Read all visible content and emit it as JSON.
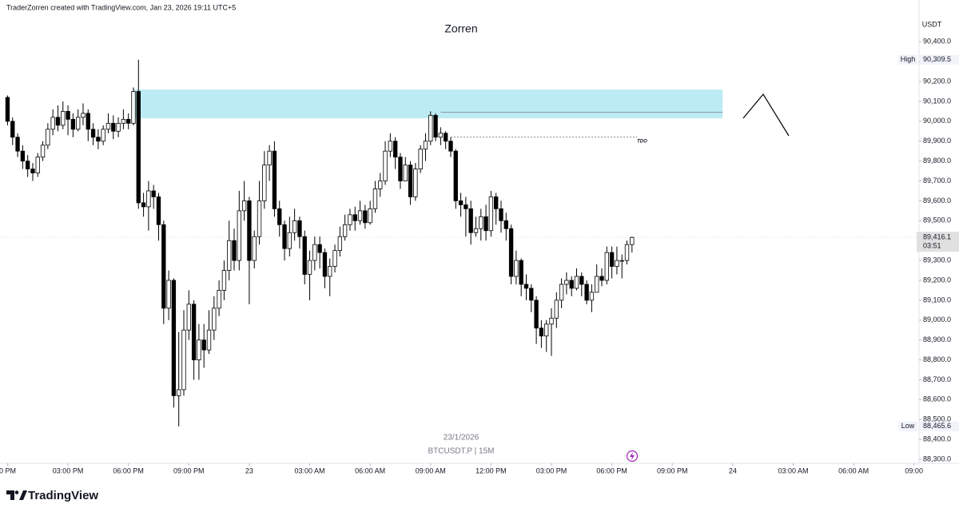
{
  "header": "TraderZorren created with TradingView.com, Jan 23, 2026 19:11 UTC+5",
  "brand": "TradingView",
  "chart_data": {
    "type": "candlestick",
    "title": "Zorren",
    "symbol": "BTCUSDT.P | 15M",
    "date_label": "23/1/2026",
    "y_axis_label": "USDT",
    "up_color": "#ffffff",
    "down_color": "#000000",
    "grid": false,
    "open": [
      90120,
      90000,
      89920,
      89850,
      89800,
      89760,
      89740,
      89820,
      89880,
      89960,
      90020,
      89980,
      90050,
      90010,
      89960,
      90020,
      90040,
      89960,
      89920,
      89900,
      89960,
      89990,
      89950,
      89990,
      90010,
      89990,
      90150,
      89590,
      89570,
      89650,
      89620,
      89480,
      89060,
      89200,
      88620,
      88650,
      88950,
      89080,
      88800,
      88900,
      88850,
      88950,
      89060,
      89150,
      89250,
      89400,
      89300,
      89550,
      89600,
      89300,
      89420,
      89600,
      89780,
      89850,
      89560,
      89480,
      89360,
      89440,
      89500,
      89420,
      89230,
      89300,
      89380,
      89340,
      89220,
      89270,
      89350,
      89420,
      89480,
      89530,
      89500,
      89550,
      89490,
      89560,
      89660,
      89700,
      89850,
      89900,
      89820,
      89700,
      89780,
      89620,
      89760,
      89860,
      89900,
      90030,
      89920,
      89940,
      89900,
      89850,
      89600,
      89580,
      89560,
      89440,
      89460,
      89520,
      89450,
      89620,
      89560,
      89500,
      89460,
      89220,
      89300,
      89180,
      89160,
      89100,
      88960,
      88920,
      88980,
      89010,
      89100,
      89180,
      89200,
      89160,
      89220,
      89180,
      89100,
      89140,
      89220,
      89200,
      89340,
      89270,
      89300,
      89300,
      89380
    ],
    "high": [
      90130,
      90020,
      89940,
      89880,
      89830,
      89790,
      89840,
      89900,
      89990,
      90060,
      90080,
      90100,
      90080,
      90040,
      90060,
      90090,
      90060,
      89990,
      89960,
      89980,
      90040,
      90030,
      90020,
      90060,
      90040,
      90170,
      90309.5,
      89640,
      89700,
      89680,
      89640,
      89500,
      89250,
      89210,
      88940,
      89050,
      89150,
      89100,
      88980,
      88980,
      89050,
      89120,
      89200,
      89300,
      89500,
      89460,
      89650,
      89700,
      89620,
      89450,
      89700,
      89850,
      89880,
      89900,
      89600,
      89500,
      89520,
      89560,
      89520,
      89450,
      89350,
      89420,
      89420,
      89360,
      89310,
      89380,
      89470,
      89530,
      89560,
      89570,
      89600,
      89580,
      89600,
      89700,
      89740,
      89900,
      89940,
      89920,
      89840,
      89820,
      89800,
      89790,
      89880,
      89940,
      90050,
      90040,
      89970,
      89950,
      89920,
      89860,
      89640,
      89620,
      89600,
      89520,
      89560,
      89580,
      89650,
      89640,
      89600,
      89540,
      89480,
      89350,
      89310,
      89230,
      89180,
      89120,
      89000,
      89000,
      89060,
      89140,
      89210,
      89240,
      89220,
      89260,
      89240,
      89200,
      89180,
      89280,
      89260,
      89370,
      89370,
      89370,
      89330,
      89400,
      89420
    ],
    "low": [
      89980,
      89880,
      89820,
      89760,
      89720,
      89700,
      89720,
      89800,
      89860,
      89930,
      89950,
      89960,
      89930,
      89920,
      89950,
      89980,
      89900,
      89880,
      89860,
      89880,
      89940,
      89910,
      89920,
      89960,
      89960,
      89980,
      89560,
      89520,
      89450,
      89560,
      89400,
      88980,
      89000,
      88560,
      88465.6,
      88620,
      88900,
      88700,
      88700,
      88760,
      88830,
      88900,
      89020,
      89100,
      89200,
      89250,
      89250,
      89500,
      89080,
      89260,
      89380,
      89560,
      89700,
      89520,
      89420,
      89300,
      89320,
      89400,
      89360,
      89180,
      89100,
      89250,
      89260,
      89160,
      89120,
      89240,
      89320,
      89400,
      89450,
      89450,
      89480,
      89460,
      89480,
      89540,
      89620,
      89680,
      89820,
      89760,
      89660,
      89700,
      89580,
      89600,
      89740,
      89800,
      89880,
      89900,
      89880,
      89860,
      89820,
      89560,
      89520,
      89420,
      89380,
      89420,
      89400,
      89400,
      89420,
      89480,
      89440,
      89400,
      89180,
      89180,
      89120,
      89100,
      89040,
      88880,
      88860,
      88840,
      88820,
      88960,
      89060,
      89130,
      89120,
      89150,
      89120,
      89080,
      89040,
      89140,
      89170,
      89180,
      89210,
      89230,
      89210,
      89280,
      89340
    ],
    "close": [
      90000,
      89920,
      89850,
      89800,
      89760,
      89740,
      89820,
      89880,
      89960,
      90020,
      89980,
      90050,
      90010,
      89960,
      90020,
      90040,
      89960,
      89920,
      89900,
      89960,
      89990,
      89950,
      89990,
      90010,
      89990,
      90150,
      89590,
      89570,
      89650,
      89620,
      89480,
      89060,
      89200,
      88620,
      88650,
      88950,
      89080,
      88800,
      88900,
      88850,
      88950,
      89060,
      89150,
      89250,
      89400,
      89300,
      89550,
      89600,
      89300,
      89420,
      89600,
      89780,
      89850,
      89560,
      89480,
      89360,
      89440,
      89500,
      89420,
      89230,
      89300,
      89380,
      89340,
      89220,
      89270,
      89350,
      89420,
      89480,
      89530,
      89500,
      89550,
      89490,
      89560,
      89660,
      89700,
      89850,
      89900,
      89820,
      89700,
      89780,
      89620,
      89760,
      89860,
      89900,
      90030,
      89920,
      89940,
      89900,
      89850,
      89600,
      89580,
      89560,
      89440,
      89460,
      89520,
      89450,
      89620,
      89560,
      89500,
      89460,
      89220,
      89300,
      89180,
      89160,
      89100,
      88960,
      88920,
      88980,
      89010,
      89100,
      89180,
      89200,
      89160,
      89220,
      89180,
      89100,
      89140,
      89220,
      89200,
      89340,
      89270,
      89300,
      89300,
      89380,
      89416.1
    ],
    "xlim": [
      -1.5,
      181
    ],
    "xticks": [
      {
        "value": 0,
        "label": "0 PM"
      },
      {
        "value": 12,
        "label": "03:00 PM"
      },
      {
        "value": 24,
        "label": "06:00 PM"
      },
      {
        "value": 36,
        "label": "09:00 PM"
      },
      {
        "value": 48,
        "label": "23"
      },
      {
        "value": 60,
        "label": "03:00 AM"
      },
      {
        "value": 72,
        "label": "06:00 AM"
      },
      {
        "value": 84,
        "label": "09:00 AM"
      },
      {
        "value": 96,
        "label": "12:00 PM"
      },
      {
        "value": 108,
        "label": "03:00 PM"
      },
      {
        "value": 120,
        "label": "06:00 PM"
      },
      {
        "value": 132,
        "label": "09:00 PM"
      },
      {
        "value": 144,
        "label": "24"
      },
      {
        "value": 156,
        "label": "03:00 AM"
      },
      {
        "value": 168,
        "label": "06:00 AM"
      },
      {
        "value": 180,
        "label": "09:00"
      }
    ],
    "ylim": [
      88280,
      90610
    ],
    "yticks": [
      {
        "value": 88300,
        "label": "88,300.0"
      },
      {
        "value": 88400,
        "label": "88,400.0"
      },
      {
        "value": 88500,
        "label": "88,500.0"
      },
      {
        "value": 88600,
        "label": "88,600.0"
      },
      {
        "value": 88700,
        "label": "88,700.0"
      },
      {
        "value": 88800,
        "label": "88,800.0"
      },
      {
        "value": 88900,
        "label": "88,900.0"
      },
      {
        "value": 89000,
        "label": "89,000.0"
      },
      {
        "value": 89100,
        "label": "89,100.0"
      },
      {
        "value": 89200,
        "label": "89,200.0"
      },
      {
        "value": 89300,
        "label": "89,300.0"
      },
      {
        "value": 89400,
        "label": "89,400.0"
      },
      {
        "value": 89500,
        "label": "89,500.0"
      },
      {
        "value": 89600,
        "label": "89,600.0"
      },
      {
        "value": 89700,
        "label": "89,700.0"
      },
      {
        "value": 89800,
        "label": "89,800.0"
      },
      {
        "value": 89900,
        "label": "89,900.0"
      },
      {
        "value": 90000,
        "label": "90,000.0"
      },
      {
        "value": 90100,
        "label": "90,100.0"
      },
      {
        "value": 90200,
        "label": "90,200.0"
      },
      {
        "value": 90300,
        "label": "90,300.0"
      },
      {
        "value": 90400,
        "label": "90,400.0"
      }
    ],
    "price_markers": [
      {
        "name": "High",
        "value": 90309.5,
        "label": "90,309.5"
      },
      {
        "name": "Low",
        "value": 88465.6,
        "label": "88,465.6"
      }
    ],
    "last_price": {
      "value": 89416.1,
      "label": "89,416.1",
      "countdown": "03:51"
    },
    "zone": {
      "top": 90160,
      "bottom": 90015,
      "start": 25,
      "end": 142,
      "color": "#bdebf3"
    },
    "level_line": {
      "value": 90045,
      "start": 86,
      "end": 142
    },
    "tdo": {
      "label": "TDO",
      "value": 89920,
      "start": 88,
      "end": 125
    }
  }
}
